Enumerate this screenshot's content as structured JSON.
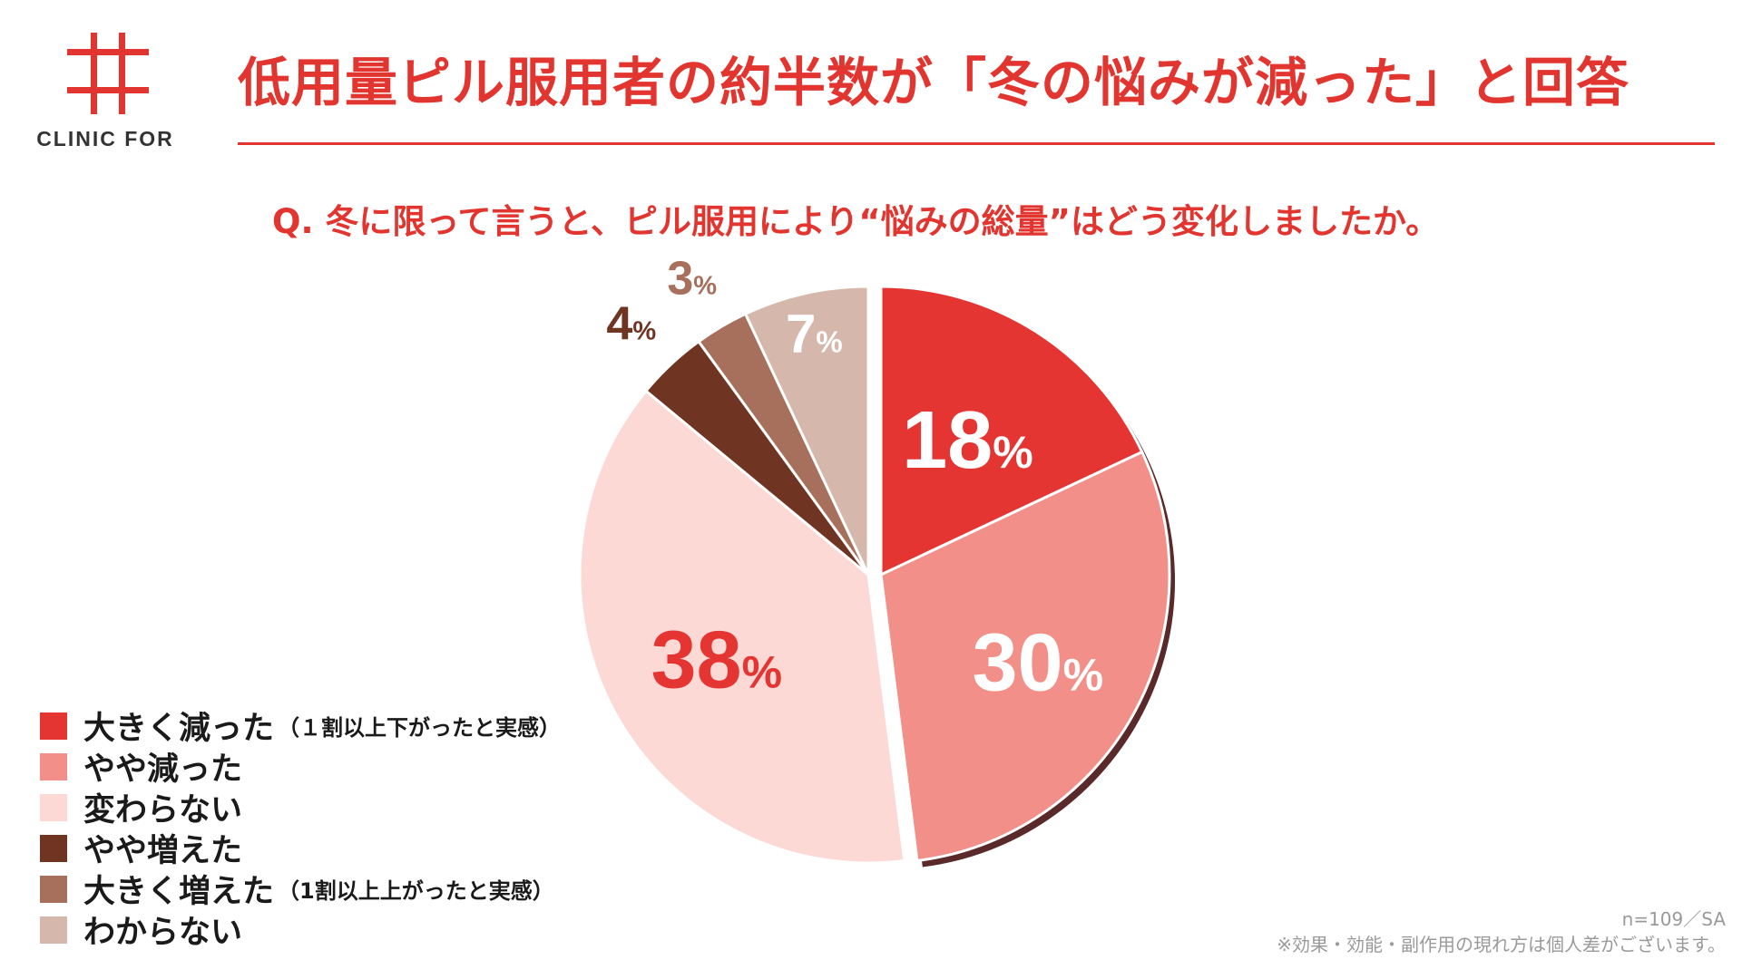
{
  "logo": {
    "text": "CLINIC FOR",
    "color": "#e2352f"
  },
  "title": "低用量ピル服用者の約半数が「冬の悩みが減った」と回答",
  "question": "Q. 冬に限って言うと、ピル服用により“悩みの総量”はどう変化しましたか。",
  "chart_data": {
    "type": "pie",
    "unit": "%",
    "categories": [
      "大きく減った",
      "やや減った",
      "変わらない",
      "やや増えた",
      "大きく増えた",
      "わからない"
    ],
    "values": [
      18,
      30,
      38,
      4,
      3,
      7
    ],
    "colors": [
      "#e43532",
      "#f28f88",
      "#fdd9d6",
      "#6f3522",
      "#a7705c",
      "#d6b7ac"
    ],
    "label_colors": [
      "#ffffff",
      "#ffffff",
      "#e43532",
      "#6f3522",
      "#a7705c",
      "#ffffff"
    ],
    "start_angle_deg": 0,
    "direction": "clockwise",
    "exploded_slices": [
      "大きく減った",
      "やや減った"
    ],
    "legend_position": "bottom-left"
  },
  "legend": [
    {
      "label": "大きく減った",
      "note": "（１割以上下がったと実感）"
    },
    {
      "label": "やや減った",
      "note": ""
    },
    {
      "label": "変わらない",
      "note": ""
    },
    {
      "label": "やや増えた",
      "note": ""
    },
    {
      "label": "大きく増えた",
      "note": "（1割以上上がったと実感）"
    },
    {
      "label": "わからない",
      "note": ""
    }
  ],
  "footer": {
    "sample": "n=109／SA",
    "disclaimer": "※効果・効能・副作用の現れ方は個人差がございます。"
  }
}
